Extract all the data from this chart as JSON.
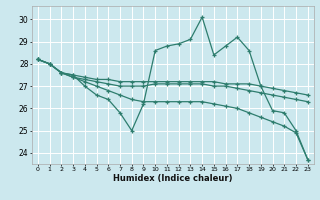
{
  "title": "",
  "xlabel": "Humidex (Indice chaleur)",
  "background_color": "#cce8ee",
  "line_color": "#2e7d6e",
  "grid_color": "#ffffff",
  "xlim": [
    -0.5,
    23.5
  ],
  "ylim": [
    23.5,
    30.6
  ],
  "yticks": [
    24,
    25,
    26,
    27,
    28,
    29,
    30
  ],
  "xticks": [
    0,
    1,
    2,
    3,
    4,
    5,
    6,
    7,
    8,
    9,
    10,
    11,
    12,
    13,
    14,
    15,
    16,
    17,
    18,
    19,
    20,
    21,
    22,
    23
  ],
  "series": [
    [
      28.2,
      28.0,
      27.6,
      27.5,
      27.0,
      26.6,
      26.4,
      25.8,
      25.0,
      26.2,
      28.6,
      28.8,
      28.9,
      29.1,
      30.1,
      28.4,
      28.8,
      29.2,
      28.6,
      27.0,
      25.9,
      25.8,
      25.0,
      23.7
    ],
    [
      28.2,
      28.0,
      27.6,
      27.5,
      27.4,
      27.3,
      27.3,
      27.2,
      27.2,
      27.2,
      27.2,
      27.2,
      27.2,
      27.2,
      27.2,
      27.2,
      27.1,
      27.1,
      27.1,
      27.0,
      26.9,
      26.8,
      26.7,
      26.6
    ],
    [
      28.2,
      28.0,
      27.6,
      27.4,
      27.3,
      27.2,
      27.1,
      27.0,
      27.0,
      27.0,
      27.1,
      27.1,
      27.1,
      27.1,
      27.1,
      27.0,
      27.0,
      26.9,
      26.8,
      26.7,
      26.6,
      26.5,
      26.4,
      26.3
    ],
    [
      28.2,
      28.0,
      27.6,
      27.4,
      27.2,
      27.0,
      26.8,
      26.6,
      26.4,
      26.3,
      26.3,
      26.3,
      26.3,
      26.3,
      26.3,
      26.2,
      26.1,
      26.0,
      25.8,
      25.6,
      25.4,
      25.2,
      24.9,
      23.7
    ]
  ]
}
